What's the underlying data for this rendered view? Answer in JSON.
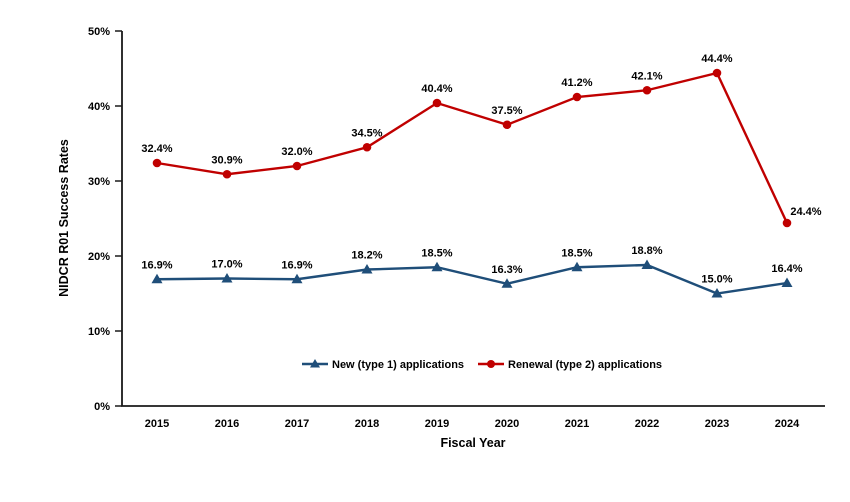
{
  "chart_data": {
    "type": "line",
    "title": "",
    "xlabel": "Fiscal Year",
    "ylabel": "NIDCR R01 Success Rates",
    "categories": [
      "2015",
      "2016",
      "2017",
      "2018",
      "2019",
      "2020",
      "2021",
      "2022",
      "2023",
      "2024"
    ],
    "ylim": [
      0,
      50
    ],
    "yticks": [
      {
        "value": 0,
        "label": "0%"
      },
      {
        "value": 10,
        "label": "10%"
      },
      {
        "value": 20,
        "label": "20%"
      },
      {
        "value": 30,
        "label": "30%"
      },
      {
        "value": 40,
        "label": "40%"
      },
      {
        "value": 50,
        "label": "50%"
      }
    ],
    "grid": false,
    "legend_position": "bottom-center-inside",
    "series": [
      {
        "name": "New (type 1) applications",
        "color": "#1F4E79",
        "marker": "triangle",
        "values": [
          16.9,
          17.0,
          16.9,
          18.2,
          18.5,
          16.3,
          18.5,
          18.8,
          15.0,
          16.4
        ],
        "labels": [
          "16.9%",
          "17.0%",
          "16.9%",
          "18.2%",
          "18.5%",
          "16.3%",
          "18.5%",
          "18.8%",
          "15.0%",
          "16.4%"
        ],
        "label_offsets": {}
      },
      {
        "name": "Renewal (type 2) applications",
        "color": "#C00000",
        "marker": "circle",
        "values": [
          32.4,
          30.9,
          32.0,
          34.5,
          40.4,
          37.5,
          41.2,
          42.1,
          44.4,
          24.4
        ],
        "labels": [
          "32.4%",
          "30.9%",
          "32.0%",
          "34.5%",
          "40.4%",
          "37.5%",
          "41.2%",
          "42.1%",
          "44.4%",
          "24.4%"
        ],
        "label_offsets": {
          "9": {
            "dx": 19,
            "dy": 3
          }
        }
      }
    ],
    "colors": {
      "axis": "#1a1a1a",
      "text": "#000000",
      "background": "#ffffff"
    }
  }
}
